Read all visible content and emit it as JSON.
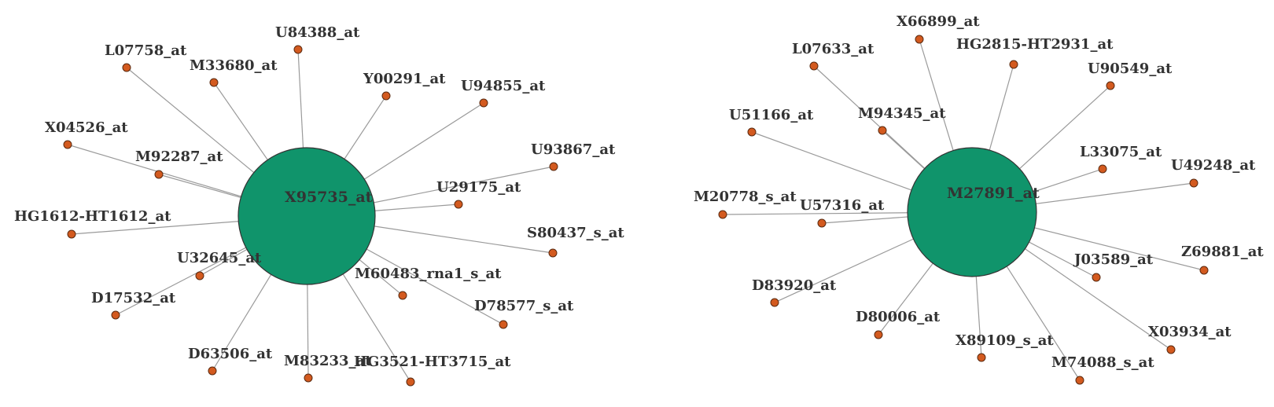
{
  "networks": [
    {
      "hub": {
        "label": "X95735_at"
      },
      "leaves": [
        {
          "label": "U84388_at"
        },
        {
          "label": "L07758_at"
        },
        {
          "label": "M33680_at"
        },
        {
          "label": "Y00291_at"
        },
        {
          "label": "U94855_at"
        },
        {
          "label": "X04526_at"
        },
        {
          "label": "M92287_at"
        },
        {
          "label": "U93867_at"
        },
        {
          "label": "U29175_at"
        },
        {
          "label": "HG1612-HT1612_at"
        },
        {
          "label": "S80437_s_at"
        },
        {
          "label": "U32645_at"
        },
        {
          "label": "M60483_rna1_s_at"
        },
        {
          "label": "D17532_at"
        },
        {
          "label": "D78577_s_at"
        },
        {
          "label": "D63506_at"
        },
        {
          "label": "M83233_at"
        },
        {
          "label": "HG3521-HT3715_at"
        }
      ]
    },
    {
      "hub": {
        "label": "M27891_at"
      },
      "leaves": [
        {
          "label": "X66899_at"
        },
        {
          "label": "L07633_at"
        },
        {
          "label": "HG2815-HT2931_at"
        },
        {
          "label": "U90549_at"
        },
        {
          "label": "U51166_at"
        },
        {
          "label": "M94345_at"
        },
        {
          "label": "L33075_at"
        },
        {
          "label": "U49248_at"
        },
        {
          "label": "M20778_s_at"
        },
        {
          "label": "U57316_at"
        },
        {
          "label": "Z69881_at"
        },
        {
          "label": "J03589_at"
        },
        {
          "label": "D83920_at"
        },
        {
          "label": "D80006_at"
        },
        {
          "label": "X03934_at"
        },
        {
          "label": "X89109_s_at"
        },
        {
          "label": "M74088_s_at"
        }
      ]
    }
  ]
}
